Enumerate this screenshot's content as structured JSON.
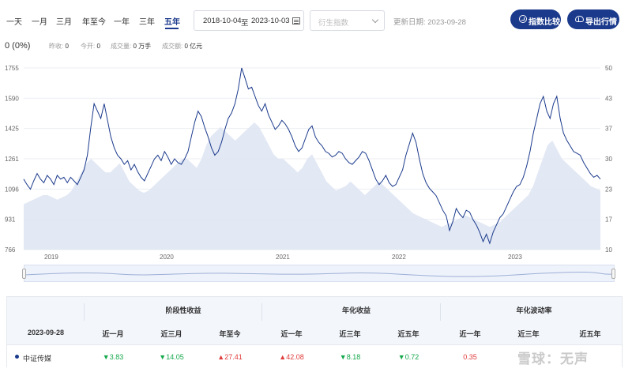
{
  "tabs": [
    {
      "label": "一天",
      "active": false
    },
    {
      "label": "一月",
      "active": false
    },
    {
      "label": "三月",
      "active": false
    },
    {
      "label": "年至今",
      "active": false
    },
    {
      "label": "一年",
      "active": false
    },
    {
      "label": "三年",
      "active": false
    },
    {
      "label": "五年",
      "active": true
    }
  ],
  "date_range": {
    "start": "2018-10-04",
    "sep": "至",
    "end": "2023-10-03"
  },
  "derive_select": {
    "placeholder": "衍生指数"
  },
  "update_date": "更新日期: 2023-09-28",
  "buttons": {
    "compare": "指数比较",
    "export": "导出行情"
  },
  "stats": {
    "price": "0",
    "change_pct": "0 (0%)",
    "prev_close_label": "昨收:",
    "prev_close": "0",
    "open_label": "今开:",
    "open": "0",
    "volume_label": "成交量:",
    "volume": "0 万手",
    "amount_label": "成交额:",
    "amount": "0 亿元"
  },
  "colors": {
    "accent": "#1b3a8c",
    "up": "#e03b3b",
    "down": "#15a84b",
    "area": "#dfe5f3"
  },
  "chart_data": {
    "type": "line",
    "left_axis_ticks": [
      "1755",
      "1590",
      "1425",
      "1261",
      "1096",
      "931",
      "766"
    ],
    "right_axis_ticks": [
      "50",
      "43",
      "37",
      "30",
      "23",
      "17",
      "10"
    ],
    "x_ticks": [
      "2019",
      "2020",
      "2021",
      "2022",
      "2023"
    ],
    "ylim_left": [
      766,
      1755
    ],
    "ylim_right": [
      10,
      50
    ],
    "series": [
      {
        "name": "",
        "values": [
          1150,
          1120,
          1095,
          1140,
          1180,
          1150,
          1130,
          1170,
          1150,
          1120,
          1170,
          1150,
          1160,
          1130,
          1160,
          1140,
          1120,
          1160,
          1200,
          1280,
          1430,
          1560,
          1520,
          1480,
          1560,
          1470,
          1380,
          1320,
          1280,
          1260,
          1230,
          1250,
          1200,
          1230,
          1190,
          1160,
          1140,
          1180,
          1220,
          1260,
          1280,
          1250,
          1300,
          1270,
          1230,
          1260,
          1240,
          1230,
          1260,
          1300,
          1380,
          1460,
          1520,
          1490,
          1430,
          1380,
          1320,
          1280,
          1300,
          1350,
          1420,
          1480,
          1510,
          1560,
          1640,
          1755,
          1700,
          1640,
          1650,
          1600,
          1550,
          1520,
          1560,
          1500,
          1460,
          1420,
          1440,
          1470,
          1450,
          1420,
          1380,
          1330,
          1300,
          1320,
          1370,
          1420,
          1440,
          1380,
          1350,
          1330,
          1300,
          1290,
          1270,
          1280,
          1300,
          1290,
          1260,
          1240,
          1230,
          1250,
          1270,
          1300,
          1290,
          1250,
          1200,
          1150,
          1120,
          1140,
          1170,
          1130,
          1110,
          1120,
          1160,
          1200,
          1280,
          1340,
          1400,
          1350,
          1260,
          1180,
          1130,
          1100,
          1080,
          1060,
          1020,
          980,
          950,
          870,
          920,
          990,
          960,
          940,
          980,
          970,
          930,
          900,
          860,
          810,
          850,
          800,
          860,
          900,
          940,
          960,
          1000,
          1040,
          1080,
          1110,
          1120,
          1160,
          1220,
          1300,
          1400,
          1480,
          1560,
          1600,
          1520,
          1480,
          1560,
          1600,
          1480,
          1400,
          1360,
          1330,
          1300,
          1290,
          1280,
          1240,
          1210,
          1180,
          1160,
          1170,
          1150
        ]
      },
      {
        "name": "",
        "values": [
          20,
          20.5,
          21,
          21.5,
          22,
          22,
          21.5,
          21,
          21.5,
          22,
          23,
          25,
          27,
          29,
          30,
          29,
          28,
          27,
          27,
          28,
          29,
          27,
          25,
          24,
          23,
          22.5,
          23,
          24,
          25,
          26,
          27,
          28,
          29,
          30,
          30,
          29,
          28,
          30,
          33,
          35,
          36,
          37,
          36,
          35,
          34,
          35,
          36,
          37,
          38,
          37,
          35,
          33,
          31,
          30,
          30,
          29,
          28,
          27,
          28,
          30,
          31,
          29,
          27,
          25,
          24,
          23,
          23.5,
          24,
          25,
          24,
          23,
          22,
          23,
          24,
          25,
          24,
          23,
          22,
          21,
          20,
          19,
          18,
          17.5,
          17,
          16.5,
          16,
          15.5,
          15,
          15.5,
          16,
          16.5,
          17,
          17.5,
          17,
          16.5,
          16,
          15.5,
          15,
          15.5,
          16,
          17,
          18,
          19,
          20,
          21,
          22,
          24,
          27,
          30,
          33,
          34,
          32,
          30,
          29,
          28,
          27,
          26,
          25,
          24,
          23.5,
          23
        ]
      }
    ]
  },
  "table": {
    "group_headers": [
      "阶段性收益",
      "年化收益",
      "年化波动率"
    ],
    "date_label": "2023-09-28",
    "columns": [
      "近一月",
      "近三月",
      "年至今",
      "近一年",
      "近三年",
      "近五年",
      "近一年",
      "近三年",
      "近五年"
    ],
    "rows": [
      {
        "name": "中证传媒",
        "cells": [
          {
            "value": "3.83",
            "dir": "down"
          },
          {
            "value": "14.05",
            "dir": "down"
          },
          {
            "value": "27.41",
            "dir": "up"
          },
          {
            "value": "42.08",
            "dir": "up"
          },
          {
            "value": "8.18",
            "dir": "down"
          },
          {
            "value": "0.72",
            "dir": "down"
          },
          {
            "value": "0.35",
            "dir": "up"
          },
          {
            "value": "",
            "dir": "up"
          },
          {
            "value": "",
            "dir": "up"
          }
        ]
      }
    ]
  },
  "watermark": "雪球：无声"
}
